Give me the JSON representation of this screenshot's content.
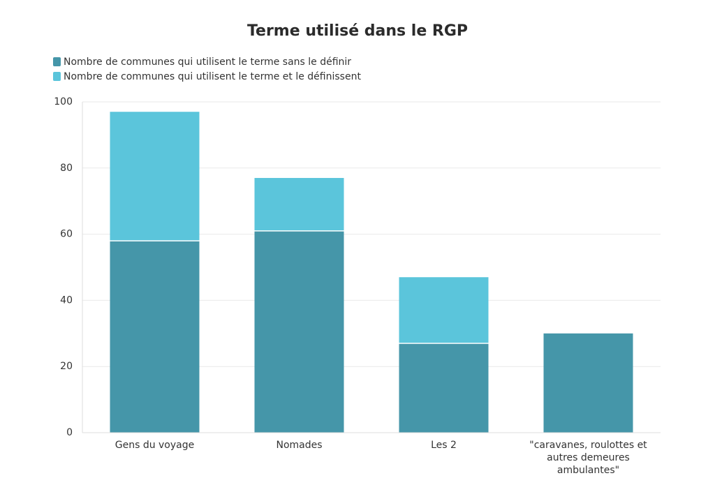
{
  "chart_data": {
    "type": "bar",
    "stacked": true,
    "title": "Terme utilisé dans le RGP",
    "categories": [
      "Gens du voyage",
      "Nomades",
      "Les 2",
      "\"caravanes, roulottes et autres demeures ambulantes\""
    ],
    "category_lines": [
      [
        "Gens du voyage"
      ],
      [
        "Nomades"
      ],
      [
        "Les 2"
      ],
      [
        "\"caravanes, roulottes et",
        "autres demeures",
        "ambulantes\""
      ]
    ],
    "series": [
      {
        "name": "Nombre de communes qui utilisent le terme sans le définir",
        "values": [
          58,
          61,
          27,
          30
        ],
        "color": "#4596a9"
      },
      {
        "name": "Nombre de communes qui utilisent le terme et le définissent",
        "values": [
          39,
          16,
          20,
          0
        ],
        "color": "#5bc5db"
      }
    ],
    "ylim": [
      0,
      100
    ],
    "yticks": [
      0,
      20,
      40,
      60,
      80,
      100
    ],
    "grid": true,
    "legend_position": "top-left",
    "xlabel": "",
    "ylabel": ""
  }
}
